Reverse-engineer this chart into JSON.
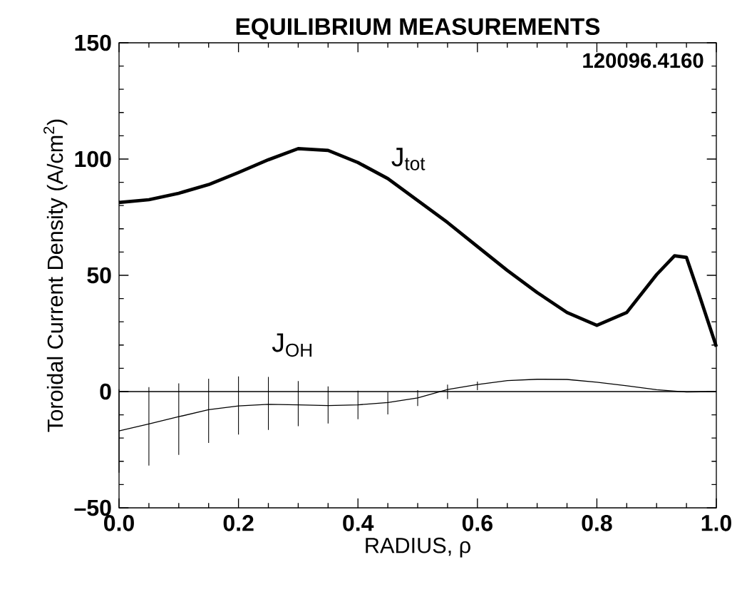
{
  "chart_data": {
    "type": "line",
    "title": "EQUILIBRIUM MEASUREMENTS",
    "xlabel": "RADIUS,  ρ",
    "ylabel": "Toroidal Current Density  (A/cm$^{2}$)",
    "xlim": [
      0,
      1
    ],
    "ylim": [
      -50,
      150
    ],
    "xticks": [
      {
        "value": 0,
        "label": "0.0"
      },
      0.2,
      0.4,
      0.6,
      0.8,
      {
        "value": 1,
        "label": "1.0"
      }
    ],
    "yticks": [
      {
        "value": -50,
        "label": "–50"
      },
      0,
      50,
      100,
      150
    ],
    "annotations": [
      "120096.4160"
    ],
    "ref_lines": [
      {
        "axis": "y",
        "value": 0,
        "color": "#000000"
      }
    ],
    "series": [
      {
        "name": "J$_{tot}$",
        "color": "#000000",
        "x": [
          0,
          0.05,
          0.1,
          0.15,
          0.2,
          0.25,
          0.3,
          0.35,
          0.4,
          0.45,
          0.5,
          0.55,
          0.6,
          0.65,
          0.7,
          0.75,
          0.8,
          0.85,
          0.9,
          0.93,
          0.95,
          0.97,
          1.0
        ],
        "values": [
          81.3,
          82.5,
          85.3,
          89,
          94.2,
          99.7,
          104.5,
          103.7,
          98.5,
          91.6,
          82.2,
          72.7,
          62.4,
          52.1,
          42.6,
          34,
          28.5,
          34,
          50.3,
          58.4,
          57.7,
          42.6,
          19.3
        ]
      },
      {
        "name": "J$_{OH}$",
        "color": "#000000",
        "x": [
          0,
          0.05,
          0.1,
          0.15,
          0.2,
          0.25,
          0.3,
          0.35,
          0.4,
          0.45,
          0.5,
          0.55,
          0.6,
          0.65,
          0.7,
          0.75,
          0.8,
          0.85,
          0.9,
          0.95,
          1.0
        ],
        "values": [
          -16.9,
          -13.9,
          -10.8,
          -7.8,
          -6.2,
          -5.5,
          -5.7,
          -6,
          -5.7,
          -4.7,
          -2.7,
          0.9,
          3,
          4.7,
          5.3,
          5.2,
          4,
          2.5,
          0.8,
          -0.2,
          0
        ],
        "errors": [
          [
            -34.9,
            1
          ],
          [
            -31.8,
            1.9
          ],
          [
            -27.2,
            3.5
          ],
          [
            -22.1,
            5.5
          ],
          [
            -18.5,
            6.5
          ],
          [
            -16.5,
            6.3
          ],
          [
            -14.9,
            4.5
          ],
          [
            -13.7,
            2.2
          ],
          [
            -11.9,
            0.4
          ],
          [
            -9.8,
            -0.2
          ],
          [
            -6.2,
            0.6
          ],
          [
            -3.2,
            3
          ],
          [
            0.6,
            4.3
          ],
          null,
          null,
          null,
          null,
          null,
          null,
          null,
          null
        ]
      }
    ]
  }
}
